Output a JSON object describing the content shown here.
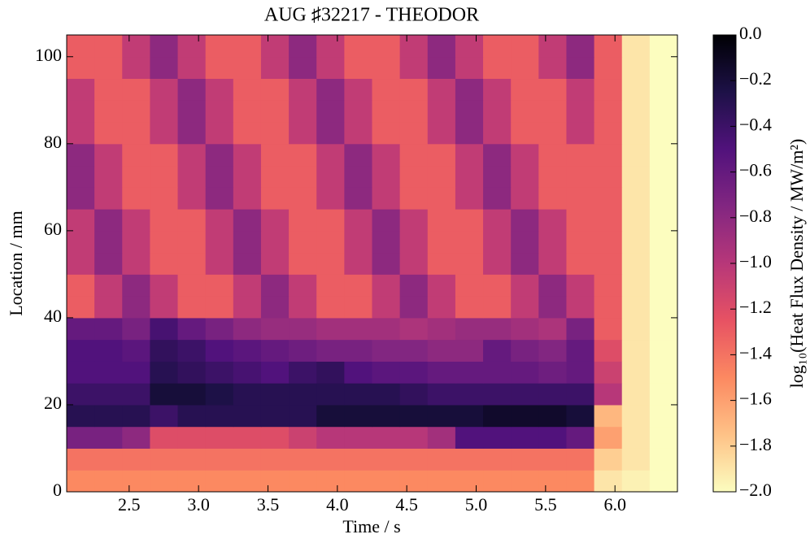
{
  "chart_data": {
    "type": "heatmap",
    "title": "AUG ♯32217 - THEODOR",
    "x_label": "Time / s",
    "y_label": "Location / mm",
    "colorbar_label": "log₁₀(Heat Flux Density / MW/m²)",
    "x": [
      2.05,
      2.25,
      2.45,
      2.65,
      2.85,
      3.05,
      3.25,
      3.45,
      3.65,
      3.85,
      4.05,
      4.25,
      4.45,
      4.65,
      4.85,
      5.05,
      5.25,
      5.45,
      5.65,
      5.85,
      6.05,
      6.25,
      6.45
    ],
    "y": [
      0,
      5,
      10,
      15,
      20,
      25,
      30,
      35,
      40,
      45,
      50,
      55,
      60,
      65,
      70,
      75,
      80,
      85,
      90,
      95,
      100,
      105
    ],
    "z": [
      [
        -1.5,
        -1.5,
        -1.5,
        -1.5,
        -1.5,
        -1.5,
        -1.5,
        -1.5,
        -1.5,
        -1.5,
        -1.5,
        -1.5,
        -1.5,
        -1.5,
        -1.5,
        -1.5,
        -1.5,
        -1.5,
        -1.5,
        -1.9,
        -1.95,
        -2.0
      ],
      [
        -1.4,
        -1.4,
        -1.4,
        -1.4,
        -1.4,
        -1.4,
        -1.4,
        -1.4,
        -1.4,
        -1.4,
        -1.4,
        -1.4,
        -1.4,
        -1.4,
        -1.4,
        -1.4,
        -1.4,
        -1.4,
        -1.4,
        -1.8,
        -1.9,
        -2.0
      ],
      [
        -0.7,
        -0.7,
        -0.8,
        -1.2,
        -1.2,
        -1.2,
        -1.2,
        -1.2,
        -1.1,
        -1.0,
        -1.0,
        -1.0,
        -1.0,
        -0.9,
        -0.5,
        -0.5,
        -0.5,
        -0.5,
        -0.6,
        -1.6,
        -1.9,
        -2.0
      ],
      [
        -0.3,
        -0.3,
        -0.3,
        -0.4,
        -0.3,
        -0.3,
        -0.3,
        -0.3,
        -0.3,
        -0.2,
        -0.2,
        -0.2,
        -0.2,
        -0.2,
        -0.2,
        -0.15,
        -0.15,
        -0.15,
        -0.2,
        -1.7,
        -1.9,
        -2.0
      ],
      [
        -0.4,
        -0.4,
        -0.4,
        -0.2,
        -0.2,
        -0.25,
        -0.3,
        -0.3,
        -0.3,
        -0.3,
        -0.3,
        -0.3,
        -0.35,
        -0.4,
        -0.4,
        -0.4,
        -0.4,
        -0.4,
        -0.4,
        -1.0,
        -1.9,
        -2.0
      ],
      [
        -0.5,
        -0.5,
        -0.5,
        -0.3,
        -0.35,
        -0.4,
        -0.45,
        -0.5,
        -0.4,
        -0.35,
        -0.5,
        -0.55,
        -0.55,
        -0.6,
        -0.6,
        -0.6,
        -0.6,
        -0.65,
        -0.6,
        -1.1,
        -1.9,
        -2.0
      ],
      [
        -0.5,
        -0.5,
        -0.55,
        -0.35,
        -0.4,
        -0.5,
        -0.55,
        -0.6,
        -0.65,
        -0.7,
        -0.7,
        -0.75,
        -0.75,
        -0.8,
        -0.8,
        -0.6,
        -0.7,
        -0.75,
        -0.6,
        -1.2,
        -1.9,
        -2.0
      ],
      [
        -0.6,
        -0.6,
        -0.7,
        -0.45,
        -0.6,
        -0.7,
        -0.8,
        -0.85,
        -0.85,
        -0.9,
        -0.9,
        -0.9,
        -0.95,
        -0.9,
        -0.85,
        -0.85,
        -0.9,
        -0.95,
        -0.7,
        -1.3,
        -1.9,
        -2.0
      ],
      [
        -1.3,
        -1.05,
        -0.8,
        -1.05,
        -1.3,
        -1.3,
        -1.05,
        -0.8,
        -1.05,
        -1.3,
        -1.3,
        -1.05,
        -0.8,
        -1.05,
        -1.3,
        -1.3,
        -1.05,
        -0.8,
        -1.05,
        -1.3,
        -1.9,
        -2.0
      ],
      [
        -1.3,
        -1.05,
        -0.8,
        -1.05,
        -1.3,
        -1.3,
        -1.05,
        -0.8,
        -1.05,
        -1.3,
        -1.3,
        -1.05,
        -0.8,
        -1.05,
        -1.3,
        -1.3,
        -1.05,
        -0.8,
        -1.05,
        -1.3,
        -1.9,
        -2.0
      ],
      [
        -1.05,
        -0.8,
        -1.05,
        -1.3,
        -1.3,
        -1.05,
        -0.8,
        -1.05,
        -1.3,
        -1.3,
        -1.05,
        -0.8,
        -1.05,
        -1.3,
        -1.3,
        -1.05,
        -0.8,
        -1.05,
        -1.3,
        -1.3,
        -1.9,
        -2.0
      ],
      [
        -1.05,
        -0.8,
        -1.05,
        -1.3,
        -1.3,
        -1.05,
        -0.8,
        -1.05,
        -1.3,
        -1.3,
        -1.05,
        -0.8,
        -1.05,
        -1.3,
        -1.3,
        -1.05,
        -0.8,
        -1.05,
        -1.3,
        -1.3,
        -1.9,
        -2.0
      ],
      [
        -1.05,
        -0.8,
        -1.05,
        -1.3,
        -1.3,
        -1.05,
        -0.8,
        -1.05,
        -1.3,
        -1.3,
        -1.05,
        -0.8,
        -1.05,
        -1.3,
        -1.3,
        -1.05,
        -0.8,
        -1.05,
        -1.3,
        -1.3,
        -1.9,
        -2.0
      ],
      [
        -0.8,
        -1.05,
        -1.3,
        -1.3,
        -1.05,
        -0.8,
        -1.05,
        -1.3,
        -1.3,
        -1.05,
        -0.8,
        -1.05,
        -1.3,
        -1.3,
        -1.05,
        -0.8,
        -1.05,
        -1.3,
        -1.3,
        -1.3,
        -1.9,
        -2.0
      ],
      [
        -0.8,
        -1.05,
        -1.3,
        -1.3,
        -1.05,
        -0.8,
        -1.05,
        -1.3,
        -1.3,
        -1.05,
        -0.8,
        -1.05,
        -1.3,
        -1.3,
        -1.05,
        -0.8,
        -1.05,
        -1.3,
        -1.3,
        -1.3,
        -1.9,
        -2.0
      ],
      [
        -0.8,
        -1.05,
        -1.3,
        -1.3,
        -1.05,
        -0.8,
        -1.05,
        -1.3,
        -1.3,
        -1.05,
        -0.8,
        -1.05,
        -1.3,
        -1.3,
        -1.05,
        -0.8,
        -1.05,
        -1.3,
        -1.3,
        -1.3,
        -1.9,
        -2.0
      ],
      [
        -1.05,
        -1.3,
        -1.3,
        -1.05,
        -0.8,
        -1.05,
        -1.3,
        -1.3,
        -1.05,
        -0.8,
        -1.05,
        -1.3,
        -1.3,
        -1.05,
        -0.8,
        -1.05,
        -1.3,
        -1.3,
        -1.05,
        -1.3,
        -1.9,
        -2.0
      ],
      [
        -1.05,
        -1.3,
        -1.3,
        -1.05,
        -0.8,
        -1.05,
        -1.3,
        -1.3,
        -1.05,
        -0.8,
        -1.05,
        -1.3,
        -1.3,
        -1.05,
        -0.8,
        -1.05,
        -1.3,
        -1.3,
        -1.05,
        -1.3,
        -1.9,
        -2.0
      ],
      [
        -1.05,
        -1.3,
        -1.3,
        -1.05,
        -0.8,
        -1.05,
        -1.3,
        -1.3,
        -1.05,
        -0.8,
        -1.05,
        -1.3,
        -1.3,
        -1.05,
        -0.8,
        -1.05,
        -1.3,
        -1.3,
        -1.05,
        -1.3,
        -1.9,
        -2.0
      ],
      [
        -1.3,
        -1.3,
        -1.05,
        -0.8,
        -1.05,
        -1.3,
        -1.3,
        -1.05,
        -0.8,
        -1.05,
        -1.3,
        -1.3,
        -1.05,
        -0.8,
        -1.05,
        -1.3,
        -1.3,
        -1.05,
        -0.8,
        -1.3,
        -1.9,
        -2.0
      ],
      [
        -1.3,
        -1.3,
        -1.05,
        -0.8,
        -1.05,
        -1.3,
        -1.3,
        -1.05,
        -0.8,
        -1.05,
        -1.3,
        -1.3,
        -1.05,
        -0.8,
        -1.05,
        -1.3,
        -1.3,
        -1.05,
        -0.8,
        -1.3,
        -1.9,
        -2.0
      ]
    ],
    "xlim": [
      2.05,
      6.45
    ],
    "ylim": [
      0,
      105
    ],
    "xticks": [
      2.5,
      {
        "value": 3,
        "label": "3.0"
      },
      3.5,
      {
        "value": 4,
        "label": "4.0"
      },
      4.5,
      {
        "value": 5,
        "label": "5.0"
      },
      5.5,
      {
        "value": 6,
        "label": "6.0"
      }
    ],
    "yticks": [
      0,
      20,
      40,
      60,
      80,
      100
    ],
    "clim": [
      -2,
      0
    ],
    "cticks": [
      {
        "value": 0,
        "label": "0.0"
      },
      {
        "value": -0.2,
        "label": "−0.2"
      },
      {
        "value": -0.4,
        "label": "−0.4"
      },
      {
        "value": -0.6,
        "label": "−0.6"
      },
      {
        "value": -0.8,
        "label": "−0.8"
      },
      {
        "value": -1.0,
        "label": "−1.0"
      },
      {
        "value": -1.2,
        "label": "−1.2"
      },
      {
        "value": -1.4,
        "label": "−1.4"
      },
      {
        "value": -1.6,
        "label": "−1.6"
      },
      {
        "value": -1.8,
        "label": "−1.8"
      },
      {
        "value": -2.0,
        "label": "−2.0"
      }
    ],
    "colors": [
      "#fcfdbf",
      "#fec287",
      "#fc8961",
      "#e75263",
      "#b73779",
      "#822681",
      "#51127c",
      "#1d1147",
      "#000004"
    ]
  }
}
